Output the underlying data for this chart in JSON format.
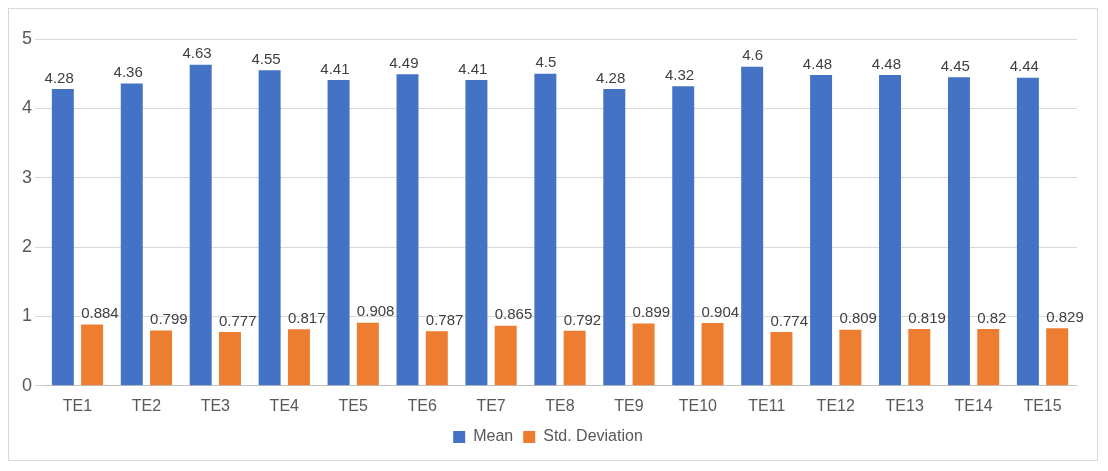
{
  "chart_data": {
    "type": "bar",
    "categories": [
      "TE1",
      "TE2",
      "TE3",
      "TE4",
      "TE5",
      "TE6",
      "TE7",
      "TE8",
      "TE9",
      "TE10",
      "TE11",
      "TE12",
      "TE13",
      "TE14",
      "TE15"
    ],
    "series": [
      {
        "name": "Mean",
        "color": "#4472c4",
        "values": [
          4.28,
          4.36,
          4.63,
          4.55,
          4.41,
          4.49,
          4.41,
          4.5,
          4.28,
          4.32,
          4.6,
          4.48,
          4.48,
          4.45,
          4.44
        ]
      },
      {
        "name": "Std. Deviation",
        "color": "#ed7d31",
        "values": [
          0.884,
          0.799,
          0.777,
          0.817,
          0.908,
          0.787,
          0.865,
          0.792,
          0.899,
          0.904,
          0.774,
          0.809,
          0.819,
          0.82,
          0.829
        ]
      }
    ],
    "ylim": [
      0,
      5
    ],
    "yticks": [
      0,
      1,
      2,
      3,
      4,
      5
    ],
    "grid": "y",
    "legend": "bottom",
    "data_labels": true
  }
}
